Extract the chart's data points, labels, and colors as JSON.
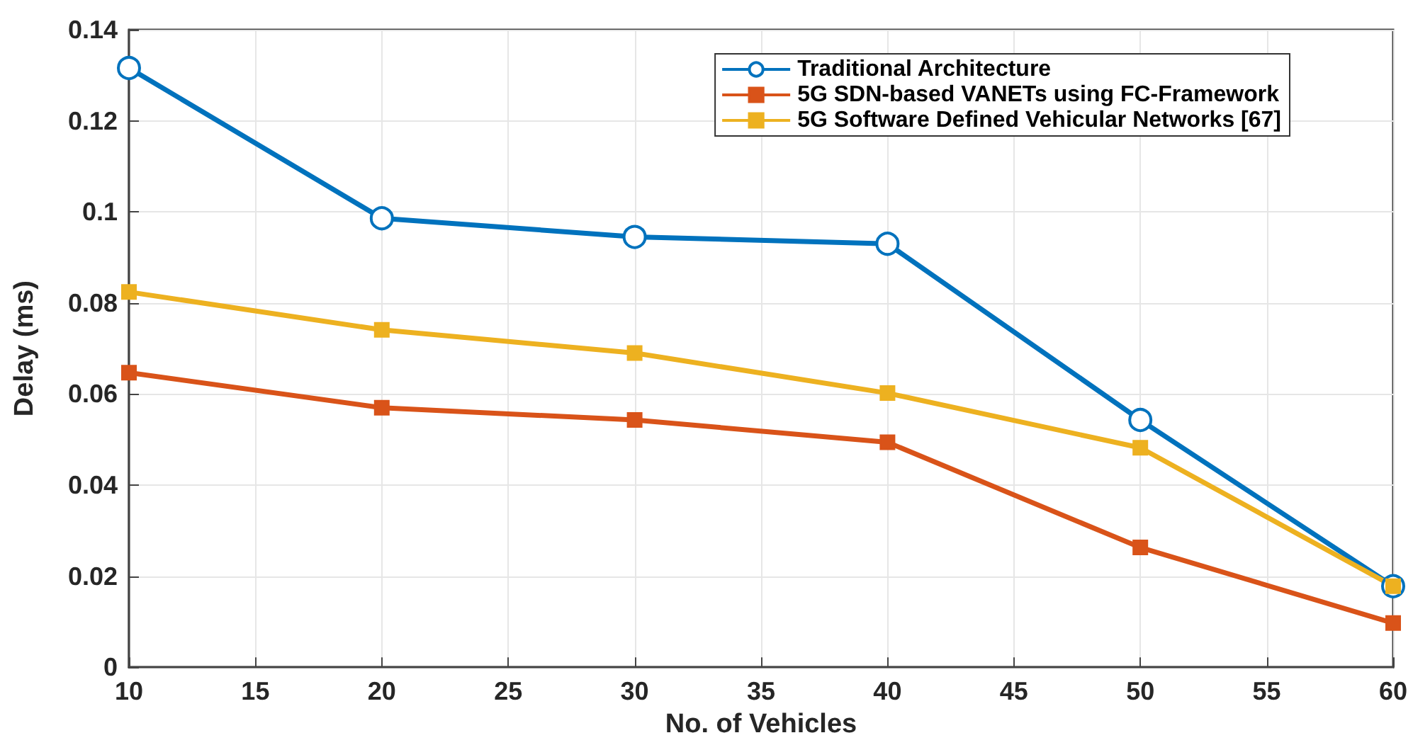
{
  "chart_data": {
    "type": "line",
    "xlabel": "No. of Vehicles",
    "ylabel": "Delay (ms)",
    "x": [
      10,
      20,
      30,
      40,
      50,
      60
    ],
    "series": [
      {
        "name": "Traditional Architecture",
        "color": "#0072bd",
        "marker": "circle",
        "values": [
          0.1316,
          0.0986,
          0.0945,
          0.093,
          0.0543,
          0.0178
        ]
      },
      {
        "name": "5G SDN-based VANETs using FC-Framework",
        "color": "#d95319",
        "marker": "square",
        "values": [
          0.0647,
          0.057,
          0.0543,
          0.0494,
          0.0263,
          0.0097
        ]
      },
      {
        "name": "5G Software Defined Vehicular Networks [67]",
        "color": "#edb120",
        "marker": "square",
        "values": [
          0.0824,
          0.0741,
          0.069,
          0.0602,
          0.0482,
          0.0178
        ]
      }
    ],
    "xlim": [
      10,
      60
    ],
    "xticks": [
      10,
      15,
      20,
      25,
      30,
      35,
      40,
      45,
      50,
      55,
      60
    ],
    "ylim": [
      0,
      0.14
    ],
    "yticks": [
      0,
      0.02,
      0.04,
      0.06,
      0.08,
      0.1,
      0.12,
      0.14
    ],
    "grid": true,
    "legend": "top right",
    "line_style": "solid"
  }
}
